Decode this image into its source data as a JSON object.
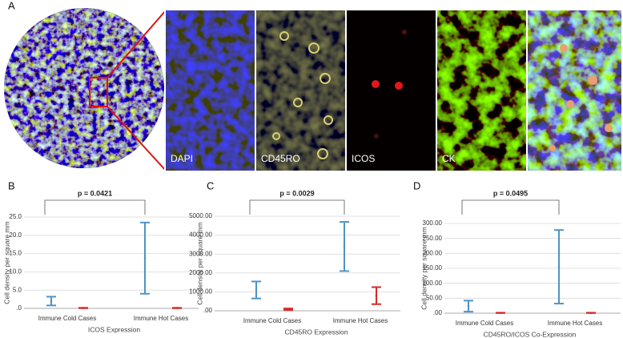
{
  "panel_a": {
    "label": "A",
    "channels": [
      "DAPI",
      "CD45RO",
      "ICOS",
      "CK"
    ]
  },
  "chart_data": [
    {
      "type": "errorbar",
      "panel_label": "B",
      "annotation": "p = 0.0421",
      "y_label": "Cell density per square mm",
      "x_label": "ICOS Expression",
      "categories": [
        "Immune Cold Cases",
        "Immune Hot Cases"
      ],
      "ylim": [
        0,
        25
      ],
      "yticks": [
        {
          "value": 0,
          "label": ".0"
        },
        {
          "value": 5,
          "label": "5.0"
        },
        {
          "value": 10,
          "label": "10.0"
        },
        {
          "value": 15,
          "label": "15.0"
        },
        {
          "value": 20,
          "label": "20.0"
        },
        {
          "value": 25,
          "label": "25.0"
        }
      ],
      "grid": true,
      "series": [
        {
          "color": "#4f93c6",
          "values": [
            2.0,
            13.8
          ],
          "low": [
            0.8,
            4.0
          ],
          "high": [
            3.2,
            23.5
          ]
        },
        {
          "color": "#d62a2a",
          "values": [
            0.1,
            0.1
          ],
          "low": [
            0.05,
            0.05
          ],
          "high": [
            0.15,
            0.15
          ]
        }
      ]
    },
    {
      "type": "errorbar",
      "panel_label": "C",
      "annotation": "p = 0.0029",
      "y_label": "Cell density per square mm",
      "x_label": "CD45RO Expression",
      "categories": [
        "Immune Cold Cases",
        "Immune Hot Cases"
      ],
      "ylim": [
        0,
        5000
      ],
      "yticks": [
        {
          "value": 0,
          "label": ".00"
        },
        {
          "value": 1000,
          "label": "1000.00"
        },
        {
          "value": 2000,
          "label": "2000.00"
        },
        {
          "value": 3000,
          "label": "3000.00"
        },
        {
          "value": 4000,
          "label": "4000.00"
        },
        {
          "value": 5000,
          "label": "5000.00"
        }
      ],
      "grid": true,
      "series": [
        {
          "color": "#4f93c6",
          "values": [
            1100,
            3400
          ],
          "low": [
            650,
            2100
          ],
          "high": [
            1550,
            4700
          ]
        },
        {
          "color": "#d62a2a",
          "values": [
            80,
            800
          ],
          "low": [
            40,
            350
          ],
          "high": [
            120,
            1250
          ]
        }
      ]
    },
    {
      "type": "errorbar",
      "panel_label": "D",
      "annotation": "p = 0.0495",
      "y_label": "Cell density per square mm",
      "x_label": "CD45RO/ICOS Co-Expression",
      "categories": [
        "Immune Cold Cases",
        "Immune Hot Cases"
      ],
      "ylim": [
        0,
        300
      ],
      "yticks": [
        {
          "value": 0,
          "label": ".00"
        },
        {
          "value": 50,
          "label": "50.00"
        },
        {
          "value": 100,
          "label": "100.00"
        },
        {
          "value": 150,
          "label": "150.00"
        },
        {
          "value": 200,
          "label": "200.00"
        },
        {
          "value": 250,
          "label": "250.00"
        },
        {
          "value": 300,
          "label": "300.00"
        }
      ],
      "grid": true,
      "series": [
        {
          "color": "#4f93c6",
          "values": [
            23,
            155
          ],
          "low": [
            5,
            32
          ],
          "high": [
            42,
            278
          ]
        },
        {
          "color": "#d62a2a",
          "values": [
            1,
            1
          ],
          "low": [
            0.5,
            0.5
          ],
          "high": [
            1.5,
            1.5
          ]
        }
      ]
    }
  ]
}
